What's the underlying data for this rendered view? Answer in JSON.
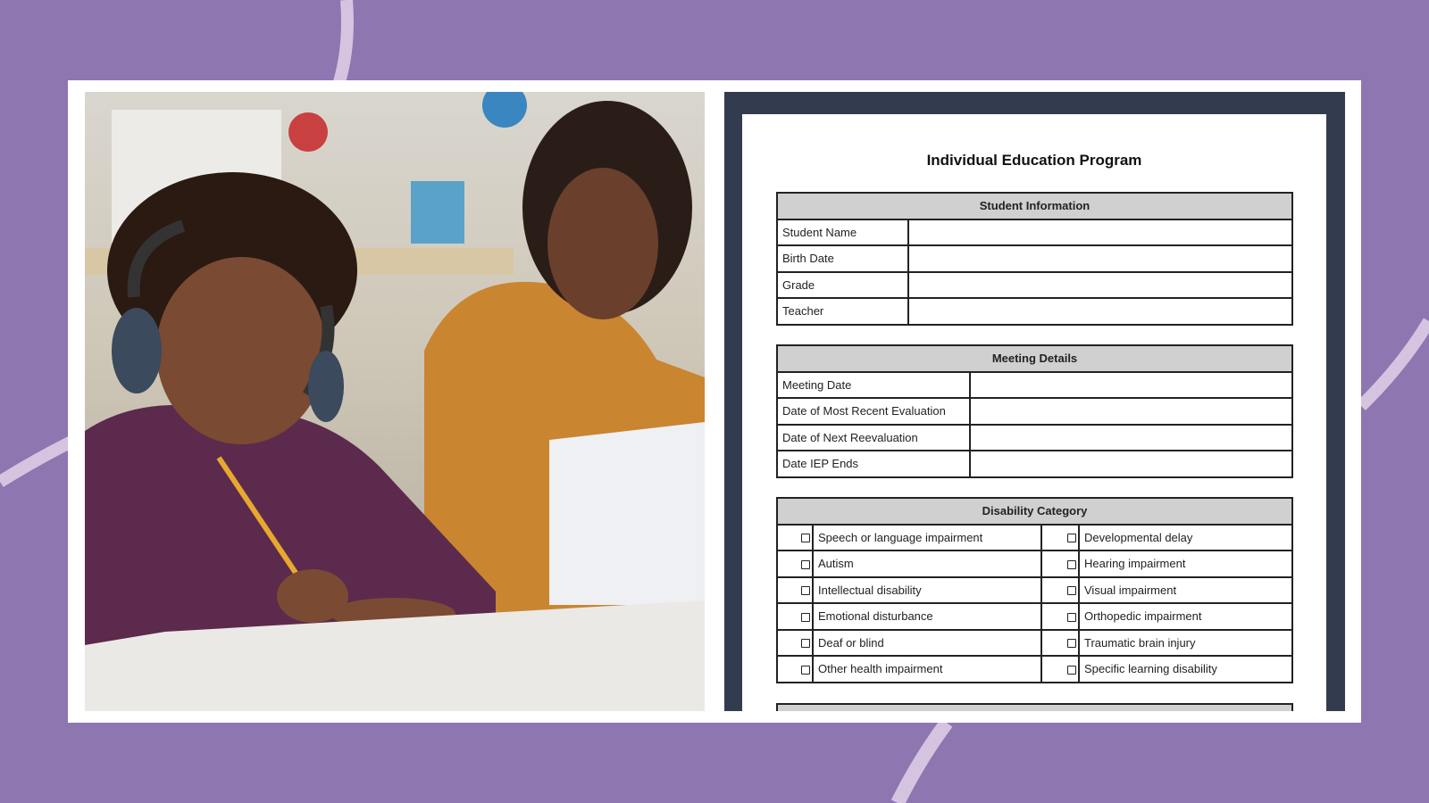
{
  "colors": {
    "background": "#8e76b0",
    "accent_curve": "#d4c4e0",
    "panel": "#333c4f",
    "table_header": "#d0d0d0"
  },
  "photo": {
    "description_icon": "photo-student-teacher"
  },
  "document": {
    "title": "Individual Education Program",
    "student_information": {
      "heading": "Student Information",
      "rows": [
        "Student Name",
        "Birth Date",
        "Grade",
        "Teacher"
      ]
    },
    "meeting_details": {
      "heading": "Meeting Details",
      "rows": [
        "Meeting Date",
        "Date of Most Recent Evaluation",
        "Date of Next Reevaluation",
        "Date IEP Ends"
      ]
    },
    "disability_category": {
      "heading": "Disability Category",
      "left": [
        "Speech or language impairment",
        "Autism",
        "Intellectual disability",
        "Emotional disturbance",
        "Deaf or blind",
        "Other health impairment"
      ],
      "right": [
        "Developmental delay",
        "Hearing impairment",
        "Visual impairment",
        "Orthopedic impairment",
        "Traumatic brain injury",
        "Specific learning disability"
      ]
    }
  }
}
